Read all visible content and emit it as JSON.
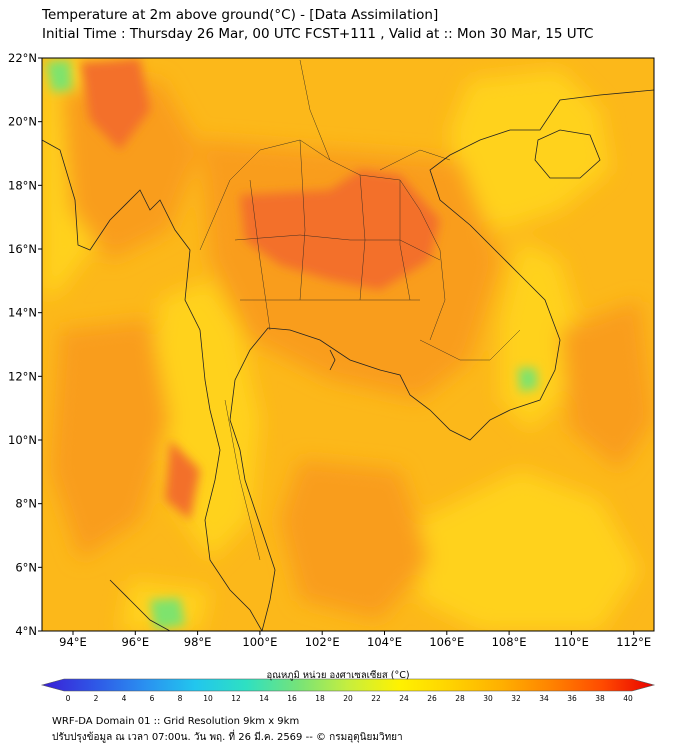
{
  "title_line1": "Temperature at 2m above ground(°C) - [Data Assimilation]",
  "title_line2": "Initial Time : Thursday 26 Mar, 00 UTC FCST+111 , Valid at :: Mon 30 Mar, 15 UTC",
  "lat_labels": [
    "22°N",
    "20°N",
    "18°N",
    "16°N",
    "14°N",
    "12°N",
    "10°N",
    "8°N",
    "6°N",
    "4°N"
  ],
  "lon_labels": [
    "94°E",
    "96°E",
    "98°E",
    "100°E",
    "102°E",
    "104°E",
    "106°E",
    "108°E",
    "110°E",
    "112°E"
  ],
  "colorbar": {
    "title": "อุณหภูมิ หน่วย องศาเซลเซียส (°C)",
    "ticks": [
      "0",
      "2",
      "4",
      "6",
      "8",
      "10",
      "12",
      "14",
      "16",
      "18",
      "20",
      "22",
      "24",
      "26",
      "28",
      "30",
      "32",
      "34",
      "36",
      "38",
      "40"
    ],
    "colors": [
      "#3a1fd6",
      "#2f55e6",
      "#2a8ff0",
      "#22c6ee",
      "#2ee0c2",
      "#74e37a",
      "#c6ee3e",
      "#fff200",
      "#ffd300",
      "#ffb000",
      "#ff8200",
      "#ff4a00",
      "#e80000"
    ]
  },
  "footer_line1": "WRF-DA Domain 01 :: Grid Resolution 9km x 9km",
  "footer_line2": "ปรับปรุงข้อมูล ณ เวลา 07:00น. วัน พฤ. ที่ 26 มี.ค. 2569 -- © กรมอุตุนิยมวิทยา",
  "field_colors": {
    "ocean": "#fcb81a",
    "land_warm": "#f99d1e",
    "hot": "#f36f2a",
    "cool": "#ffd21c",
    "cold": "#7ee36d"
  }
}
